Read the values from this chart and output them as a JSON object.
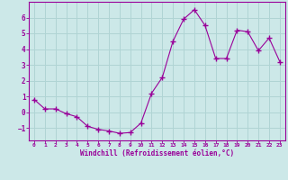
{
  "x": [
    0,
    1,
    2,
    3,
    4,
    5,
    6,
    7,
    8,
    9,
    10,
    11,
    12,
    13,
    14,
    15,
    16,
    17,
    18,
    19,
    20,
    21,
    22,
    23
  ],
  "y": [
    0.8,
    0.2,
    0.2,
    -0.1,
    -0.3,
    -0.9,
    -1.1,
    -1.2,
    -1.35,
    -1.3,
    -0.7,
    1.2,
    2.2,
    4.5,
    5.9,
    6.5,
    5.5,
    3.4,
    3.4,
    5.2,
    5.1,
    3.9,
    4.7,
    3.2
  ],
  "line_color": "#990099",
  "marker": "+",
  "marker_size": 4,
  "bg_color": "#cce8e8",
  "grid_color": "#b0d4d4",
  "xlabel": "Windchill (Refroidissement éolien,°C)",
  "xlabel_color": "#990099",
  "tick_color": "#990099",
  "ylim": [
    -1.8,
    7.0
  ],
  "xlim": [
    -0.5,
    23.5
  ],
  "yticks": [
    -1,
    0,
    1,
    2,
    3,
    4,
    5,
    6
  ],
  "xticks": [
    0,
    1,
    2,
    3,
    4,
    5,
    6,
    7,
    8,
    9,
    10,
    11,
    12,
    13,
    14,
    15,
    16,
    17,
    18,
    19,
    20,
    21,
    22,
    23
  ]
}
